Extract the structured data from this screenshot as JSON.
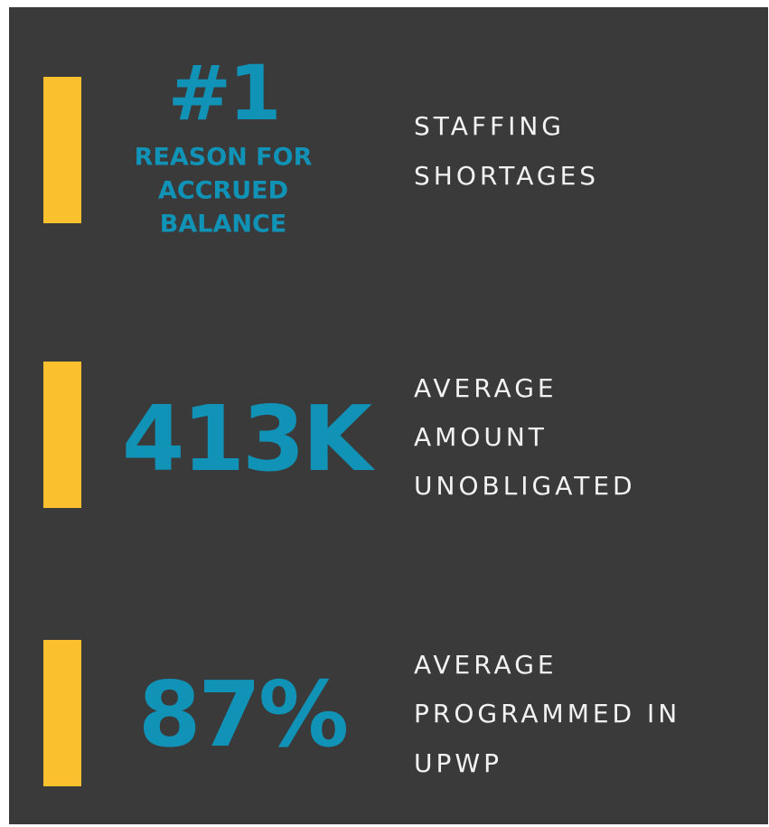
{
  "items": [
    {
      "headline": "#1",
      "subheadline": [
        "REASON FOR",
        "ACCRUED",
        "BALANCE"
      ],
      "description": [
        "STAFFING",
        "SHORTAGES"
      ]
    },
    {
      "headline": "413K",
      "description": [
        "AVERAGE",
        "AMOUNT",
        "UNOBLIGATED"
      ]
    },
    {
      "headline": "87%",
      "description": [
        "AVERAGE",
        "PROGRAMMED IN",
        "UPWP"
      ]
    }
  ]
}
